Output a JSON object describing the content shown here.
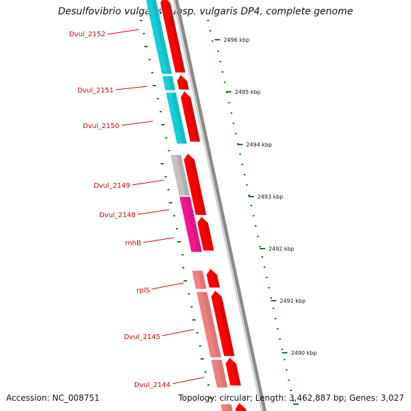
{
  "title": "Desulfovibrio vulgaris subsp. vulgaris DP4, complete genome",
  "accession": "Accession: NC_008751",
  "summary": "Topology: circular; Length: 3,462,887 bp; Genes: 3,027",
  "colors": {
    "forward_cds": "#ff0000",
    "reverse_cyan": "#14cfd6",
    "reverse_gray": "#c2c2c2",
    "reverse_magenta": "#f0168e",
    "reverse_pink": "#f08080",
    "backbone": "#8a8a8a",
    "gc_ticks": "#1a7a1a",
    "label_text": "#cc0000"
  },
  "gene_labels": [
    "Dvul_2152",
    "Dvul_2151",
    "Dvul_2150",
    "Dvul_2149",
    "Dvul_2148",
    "rnhB",
    "rplS",
    "Dvul_2145",
    "Dvul_2144"
  ],
  "kbp_ticks": [
    "2496 kbp",
    "2495 kbp",
    "2494 kbp",
    "2493 kbp",
    "2492 kbp",
    "2491 kbp",
    "2490 kbp"
  ]
}
